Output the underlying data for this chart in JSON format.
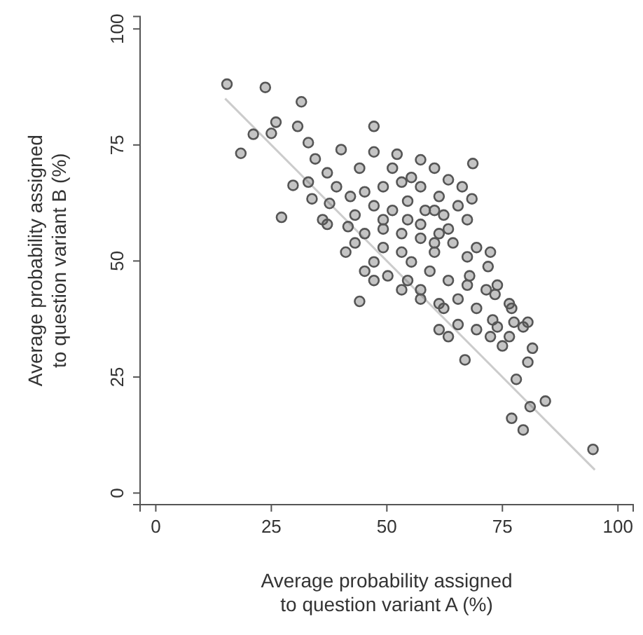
{
  "chart_data": {
    "type": "scatter",
    "xlabel": "Average probability assigned\nto question variant A (%)",
    "ylabel": "Average probability assigned\nto question variant B (%)",
    "xlim": [
      -3.4,
      103.3
    ],
    "ylim": [
      -2.5,
      102.7
    ],
    "xticks": [
      0,
      25,
      50,
      75,
      100
    ],
    "yticks": [
      0,
      25,
      50,
      75,
      100
    ],
    "grid": false,
    "series": [
      {
        "type": "line",
        "color": "#cccccc",
        "line_style": "solid",
        "x": [
          15,
          95
        ],
        "values": [
          85,
          5
        ]
      },
      {
        "color": "#555555",
        "marker": "circle",
        "x": [
          15.4,
          23.7,
          31.5,
          18.4,
          21.1,
          26,
          25,
          30.7,
          33,
          27.2,
          29.7,
          33.8,
          33,
          47.2,
          68.6,
          68.4,
          44.1,
          66.9,
          78,
          77,
          81,
          84.3,
          79.5,
          94.6,
          80.5,
          81.5,
          80.5,
          76.5,
          73.9,
          71.9,
          65.4,
          61.3,
          63.3,
          75,
          72.4,
          69.4,
          41.1,
          41.6,
          36.1,
          37.6,
          37.1,
          40.1,
          34.5,
          47.2,
          52.2,
          57.3,
          60.3,
          63.3,
          66.3,
          47.2,
          50.2,
          53.2,
          57.3,
          61.3,
          65.4,
          69.4,
          72.9,
          67.4,
          71.5,
          63.3,
          59.3,
          55.3,
          67.4,
          72.4,
          64.3,
          61.3,
          57.3,
          53.2,
          49.2,
          45.2,
          43.1,
          47.2,
          51.2,
          54.5,
          58.3,
          62.3,
          65.4,
          57.3,
          53.2,
          49.2,
          45.2,
          42.1,
          39.1,
          44.1,
          51.2,
          55.3,
          61.3,
          69.4,
          60.3,
          53.2,
          49.2,
          43.1,
          45.2,
          37.1,
          62.3,
          57.3,
          54.5,
          67.9,
          73.4,
          77.5,
          73.9,
          76.5,
          79.5,
          77,
          54.5,
          49.2,
          67.4,
          63.3,
          57.3,
          60.3,
          60.3,
          47.2
        ],
        "values": [
          88.1,
          87.4,
          84.3,
          73.2,
          77.3,
          79.9,
          77.5,
          79,
          75.5,
          59.4,
          66.3,
          63.4,
          67,
          79,
          71,
          63.4,
          41.3,
          28.7,
          24.5,
          16.1,
          18.6,
          19.8,
          13.6,
          9.4,
          28.2,
          31.2,
          36.8,
          40.8,
          44.8,
          48.8,
          36.3,
          35.2,
          33.7,
          31.7,
          33.7,
          35.2,
          51.9,
          57.4,
          58.9,
          62.4,
          69,
          74,
          72,
          73.5,
          73,
          71.8,
          70,
          67.5,
          66,
          49.8,
          46.8,
          43.8,
          41.8,
          40.8,
          41.8,
          39.8,
          37.3,
          44.8,
          43.8,
          45.8,
          47.8,
          49.8,
          50.9,
          51.9,
          53.9,
          55.9,
          54.9,
          55.9,
          56.9,
          55.9,
          59.9,
          61.9,
          60.9,
          62.9,
          60.9,
          59.9,
          61.9,
          66,
          67,
          66,
          64.9,
          63.9,
          66,
          70,
          70,
          68,
          63.9,
          52.9,
          51.9,
          51.9,
          52.9,
          53.9,
          47.8,
          57.9,
          39.8,
          43.8,
          45.8,
          46.8,
          42.8,
          36.8,
          35.8,
          33.7,
          35.8,
          39.8,
          58.9,
          58.9,
          58.9,
          56.9,
          57.9,
          60.9,
          53.9,
          45.8
        ]
      }
    ]
  }
}
